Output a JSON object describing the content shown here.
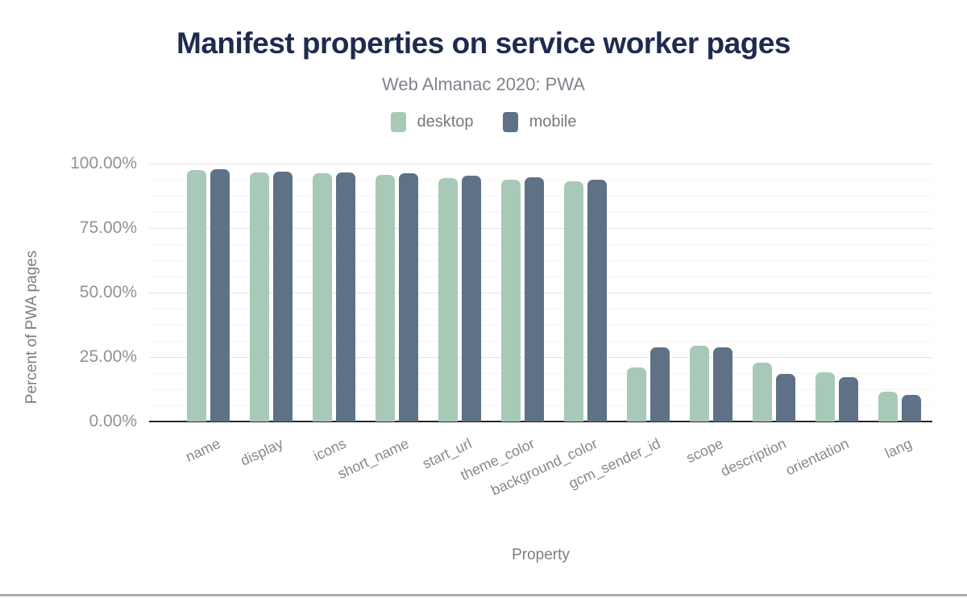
{
  "chart_data": {
    "type": "bar",
    "title": "Manifest properties on service worker pages",
    "subtitle": "Web Almanac 2020: PWA",
    "xlabel": "Property",
    "ylabel": "Percent of PWA pages",
    "categories": [
      "name",
      "display",
      "icons",
      "short_name",
      "start_url",
      "theme_color",
      "background_color",
      "gcm_sender_id",
      "scope",
      "description",
      "orientation",
      "lang"
    ],
    "series": [
      {
        "name": "desktop",
        "color": "#a8c9b7",
        "values": [
          97.4,
          96.5,
          96.3,
          95.6,
          94.5,
          93.7,
          93.0,
          21.0,
          29.5,
          22.9,
          19.2,
          11.5
        ]
      },
      {
        "name": "mobile",
        "color": "#5f7186",
        "values": [
          97.7,
          96.9,
          96.5,
          96.4,
          95.4,
          94.6,
          93.9,
          28.8,
          28.9,
          18.5,
          17.1,
          10.4
        ]
      }
    ],
    "ylim": [
      0,
      100
    ],
    "yticks": [
      {
        "value": 0,
        "label": "0.00%"
      },
      {
        "value": 25,
        "label": "25.00%"
      },
      {
        "value": 50,
        "label": "50.00%"
      },
      {
        "value": 75,
        "label": "75.00%"
      },
      {
        "value": 100,
        "label": "100.00%"
      }
    ],
    "grid": {
      "major_every": 25,
      "minor_every": 6.25,
      "orientation": "horizontal"
    },
    "legend_position": "top-center",
    "colors": {
      "title": "#1e2b4e",
      "subtitle_text": "#7e848e",
      "axis_text": "#8d929a",
      "baseline": "#26282b",
      "bottom_divider": "#a9abae"
    }
  }
}
